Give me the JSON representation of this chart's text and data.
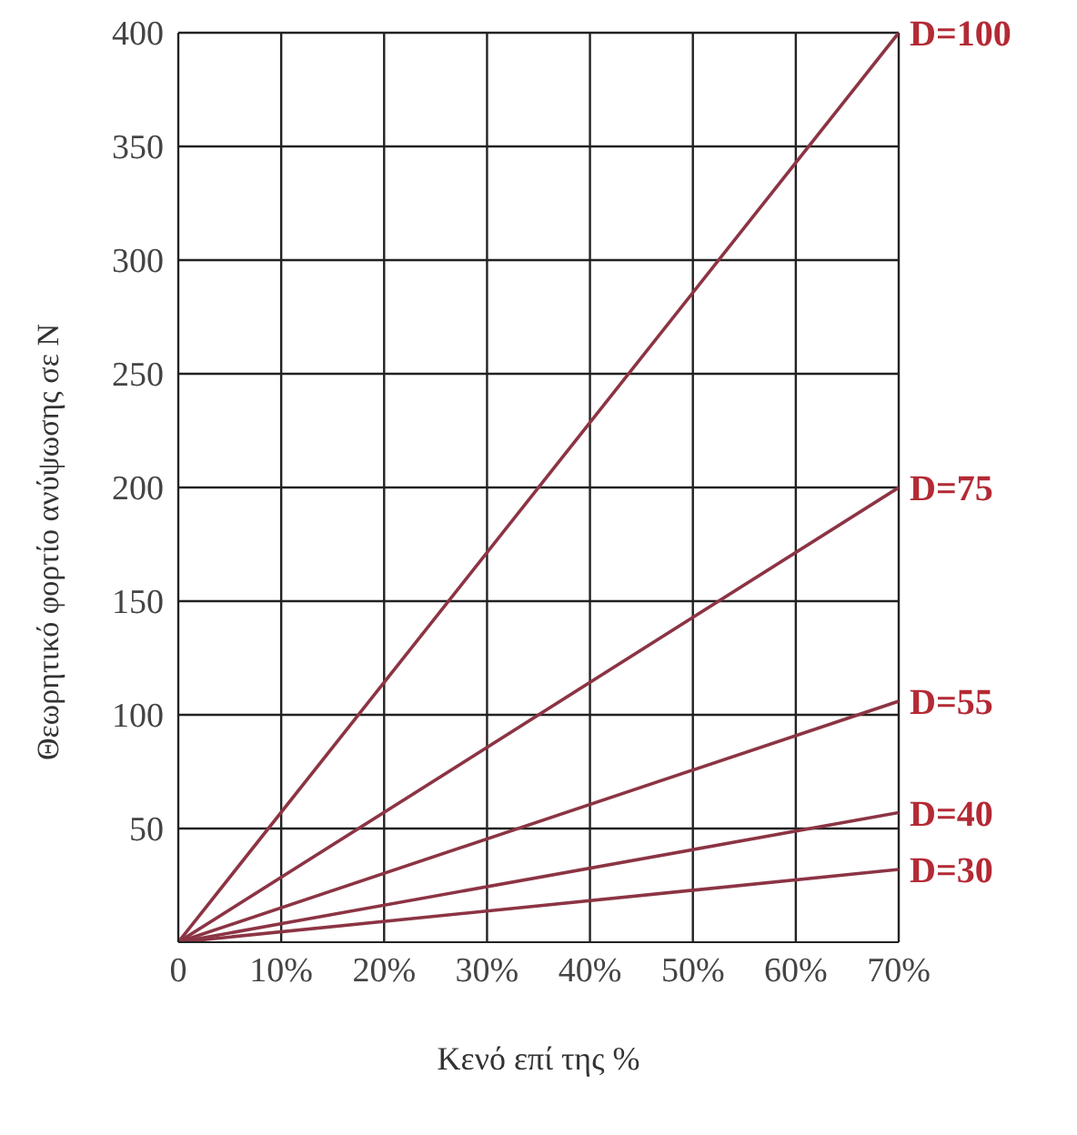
{
  "chart_data": {
    "type": "line",
    "xlabel": "Κενό επί της %",
    "ylabel": "Θεωρητικό φορτίο ανύψωσης σε Ν",
    "x": [
      0,
      70
    ],
    "series": [
      {
        "name": "D=100",
        "color": "#8c3444",
        "values": [
          0,
          400
        ]
      },
      {
        "name": "D=75",
        "color": "#8c3444",
        "values": [
          0,
          200
        ]
      },
      {
        "name": "D=55",
        "color": "#8c3444",
        "values": [
          0,
          106
        ]
      },
      {
        "name": "D=40",
        "color": "#8c3444",
        "values": [
          0,
          57
        ]
      },
      {
        "name": "D=30",
        "color": "#8c3444",
        "values": [
          0,
          32
        ]
      }
    ],
    "xlim": [
      0,
      70
    ],
    "xticks": [
      0,
      {
        "value": 10,
        "label": "10%"
      },
      {
        "value": 20,
        "label": "20%"
      },
      {
        "value": 30,
        "label": "30%"
      },
      {
        "value": 40,
        "label": "40%"
      },
      {
        "value": 50,
        "label": "50%"
      },
      {
        "value": 60,
        "label": "60%"
      },
      {
        "value": 70,
        "label": "70%"
      }
    ],
    "ylim": [
      0,
      400
    ],
    "yticks": [
      50,
      100,
      150,
      200,
      250,
      300,
      350,
      400
    ],
    "grid": true,
    "marker": "none",
    "line_style": "solid"
  }
}
